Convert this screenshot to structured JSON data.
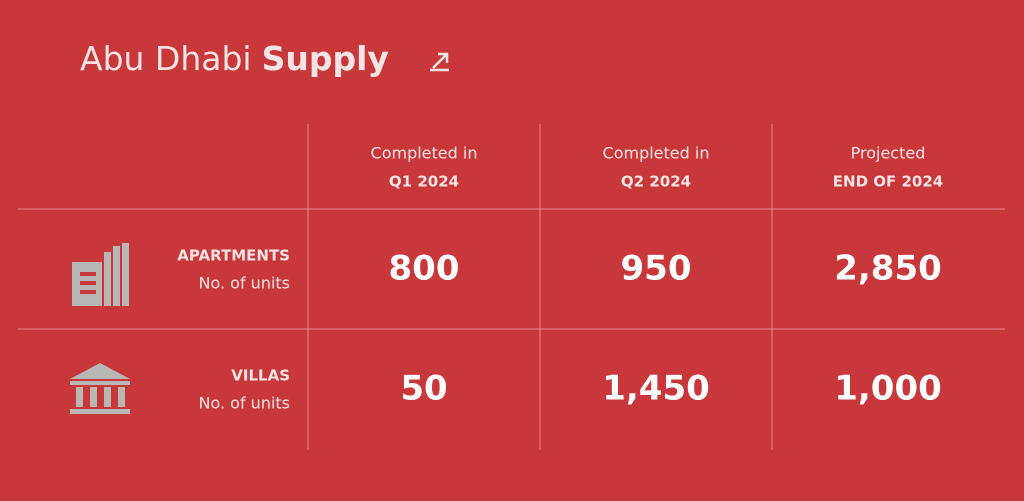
{
  "header": {
    "title_light": "Abu Dhabi",
    "title_bold": "Supply"
  },
  "table": {
    "columns": [
      {
        "line1": "Completed in",
        "line2": "Q1 2024"
      },
      {
        "line1": "Completed in",
        "line2": "Q2 2024"
      },
      {
        "line1": "Projected",
        "line2": "END OF 2024"
      }
    ],
    "rows": [
      {
        "label": "APARTMENTS",
        "sublabel": "No. of units",
        "values": [
          "800",
          "950",
          "2,850"
        ]
      },
      {
        "label": "VILLAS",
        "sublabel": "No. of units",
        "values": [
          "50",
          "1,450",
          "1,000"
        ]
      }
    ]
  }
}
